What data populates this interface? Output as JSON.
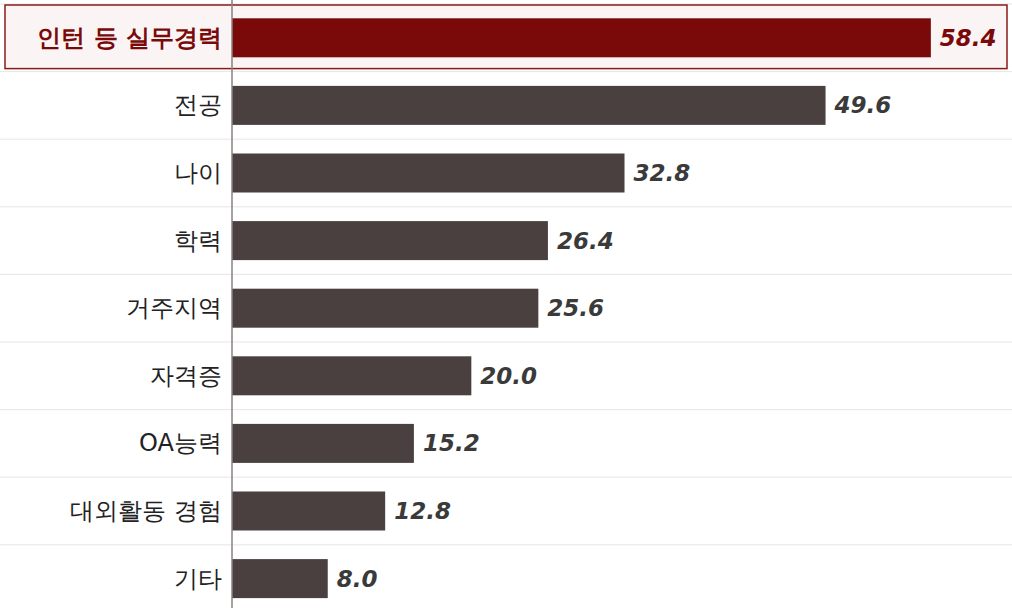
{
  "chart_data": {
    "type": "bar",
    "orientation": "horizontal",
    "categories": [
      "인턴 등 실무경력",
      "전공",
      "나이",
      "학력",
      "거주지역",
      "자격증",
      "OA능력",
      "대외활동 경험",
      "기타"
    ],
    "values": [
      58.4,
      49.6,
      32.8,
      26.4,
      25.6,
      20.0,
      15.2,
      12.8,
      8.0
    ],
    "value_labels": [
      "58.4",
      "49.6",
      "32.8",
      "26.4",
      "25.6",
      "20.0",
      "15.2",
      "12.8",
      "8.0"
    ],
    "colors": [
      "#7a0a0a",
      "#4b4040",
      "#4b4040",
      "#4b4040",
      "#4b4040",
      "#4b4040",
      "#4b4040",
      "#4b4040",
      "#4b4040"
    ],
    "xlim": [
      0,
      60
    ],
    "data_labels": true,
    "tick_labels": "y"
  }
}
